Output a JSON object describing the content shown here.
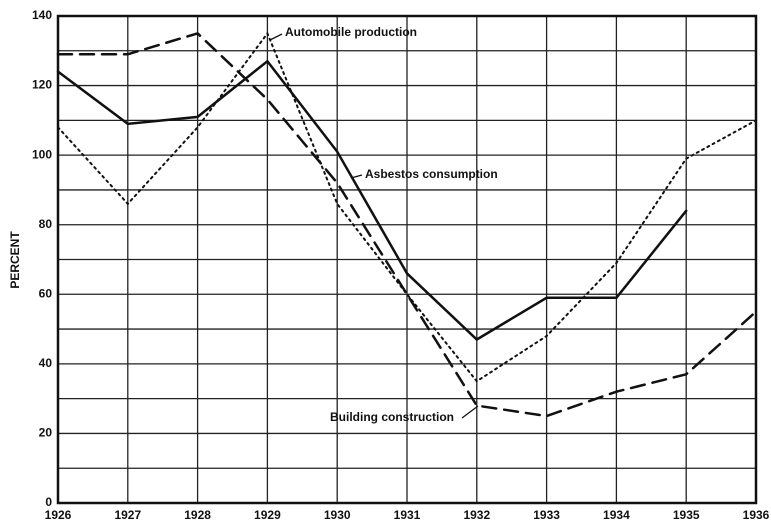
{
  "chart_data": {
    "type": "line",
    "y_label": "PERCENT",
    "x": [
      1926,
      1927,
      1928,
      1929,
      1930,
      1931,
      1932,
      1933,
      1934,
      1935,
      1936
    ],
    "xlim": [
      1926,
      1936
    ],
    "xticks": [
      1926,
      1927,
      1928,
      1929,
      1930,
      1931,
      1932,
      1933,
      1934,
      1935,
      1936
    ],
    "ylim": [
      0,
      140
    ],
    "yticks": [
      0,
      20,
      40,
      60,
      80,
      100,
      120,
      140
    ],
    "y_minor_gridlines": [
      10,
      30,
      50,
      70,
      90,
      110,
      130
    ],
    "grid": true,
    "series": [
      {
        "name": "Asbestos consumption",
        "color": "#111111",
        "dash": "solid",
        "values": [
          124,
          109,
          111,
          127,
          101,
          66,
          47,
          59,
          59,
          84,
          null
        ]
      },
      {
        "name": "Automobile production",
        "color": "#111111",
        "dash": "dotted",
        "values": [
          108,
          86,
          108,
          135,
          86,
          60,
          35,
          48,
          69,
          99,
          110
        ]
      },
      {
        "name": "Building construction",
        "color": "#111111",
        "dash": "dashed",
        "values": [
          129,
          129,
          135,
          116,
          92,
          60,
          28,
          25,
          32,
          37,
          55
        ]
      }
    ]
  }
}
